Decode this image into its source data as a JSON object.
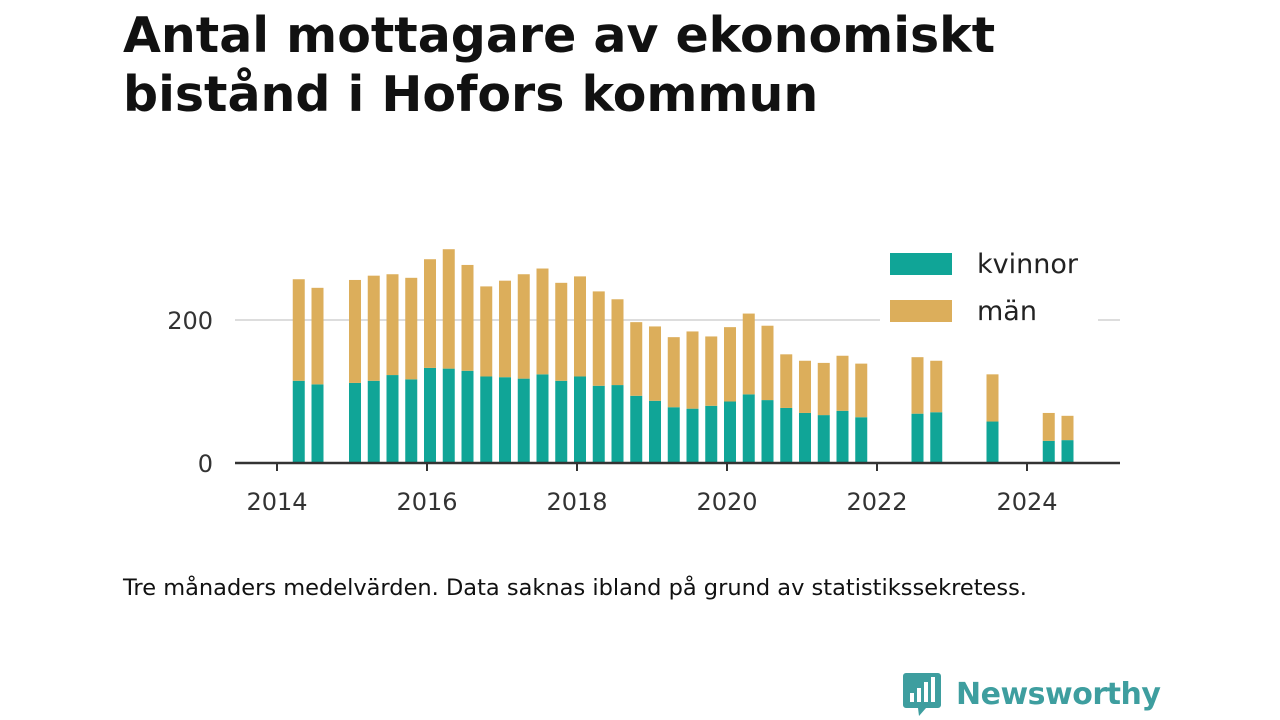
{
  "title": {
    "line1": "Antal mottagare av ekonomiskt",
    "line2": "bistånd i Hofors kommun"
  },
  "caption": "Tre månaders medelvärden. Data saknas ibland på grund av statistikssekretess.",
  "brand": {
    "name": "Newsworthy",
    "icon": "newsworthy-logo-icon",
    "color": "#3e9e9f"
  },
  "colors": {
    "kvinnor": "#10a597",
    "man": "#dcae5b",
    "axis": "#333333",
    "grid": "#dddddd"
  },
  "chart_data": {
    "type": "bar",
    "stacked": true,
    "title": "",
    "xlabel": "",
    "ylabel": "",
    "ylim": [
      0,
      320
    ],
    "xlim": [
      2013.75,
      2025.25
    ],
    "y_ticks": [
      0,
      200
    ],
    "x_ticks": [
      2014,
      2016,
      2018,
      2020,
      2022,
      2024
    ],
    "grid": true,
    "legend_position": "top-right",
    "x": [
      2014.29,
      2014.54,
      2015.04,
      2015.29,
      2015.54,
      2015.79,
      2016.04,
      2016.29,
      2016.54,
      2016.79,
      2017.04,
      2017.29,
      2017.54,
      2017.79,
      2018.04,
      2018.29,
      2018.54,
      2018.79,
      2019.04,
      2019.29,
      2019.54,
      2019.79,
      2020.04,
      2020.29,
      2020.54,
      2020.79,
      2021.04,
      2021.29,
      2021.54,
      2021.79,
      2022.54,
      2022.79,
      2023.54,
      2024.29,
      2024.54
    ],
    "series": [
      {
        "name": "kvinnor",
        "color": "#10a597",
        "values": [
          115,
          110,
          112,
          115,
          123,
          117,
          133,
          132,
          129,
          121,
          120,
          118,
          124,
          115,
          121,
          108,
          109,
          94,
          87,
          78,
          76,
          80,
          86,
          96,
          88,
          77,
          70,
          67,
          73,
          64,
          69,
          71,
          58,
          31,
          32
        ]
      },
      {
        "name": "män",
        "color": "#dcae5b",
        "values": [
          142,
          135,
          144,
          147,
          141,
          142,
          152,
          167,
          148,
          126,
          135,
          146,
          148,
          137,
          140,
          132,
          120,
          103,
          104,
          98,
          108,
          97,
          104,
          113,
          104,
          75,
          73,
          73,
          77,
          75,
          79,
          72,
          66,
          39,
          34
        ]
      }
    ]
  }
}
